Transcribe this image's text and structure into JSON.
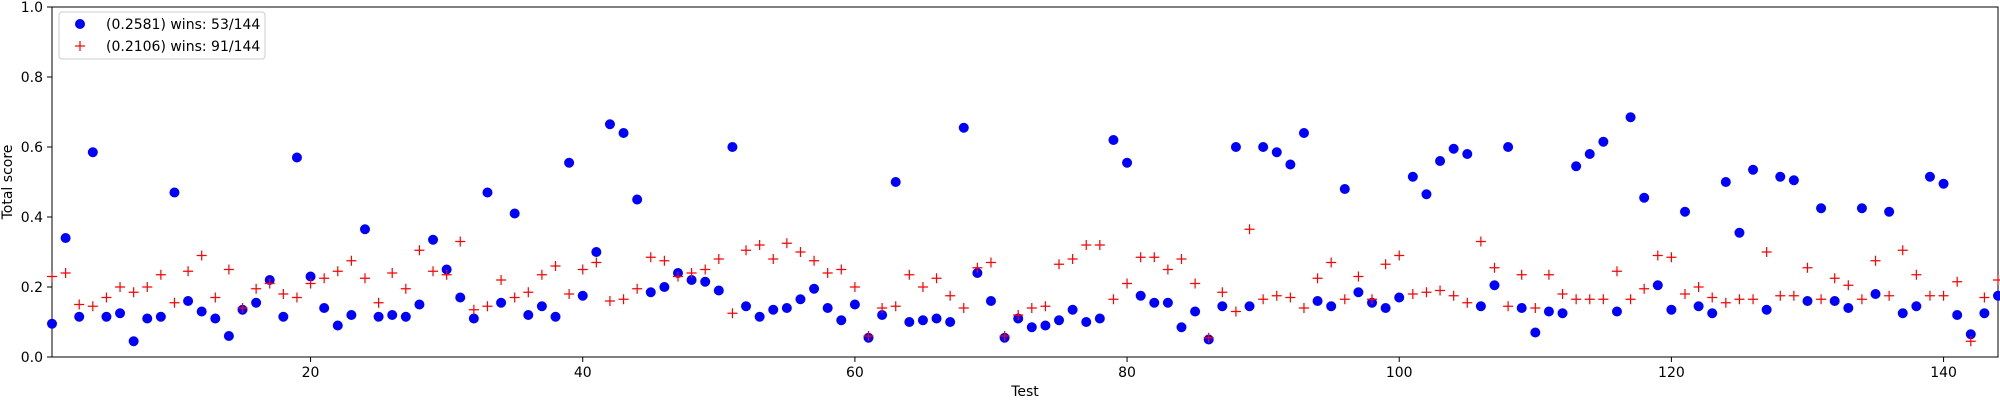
{
  "chart_data": {
    "type": "scatter",
    "title": "",
    "xlabel": "Test",
    "ylabel": "Total score",
    "xlim": [
      1,
      144
    ],
    "ylim": [
      0,
      1.0
    ],
    "x_ticks": [
      20,
      40,
      60,
      80,
      100,
      120,
      140
    ],
    "y_ticks": [
      0.0,
      0.2,
      0.4,
      0.6,
      0.8,
      1.0
    ],
    "x_tick_labels": [
      "20",
      "40",
      "60",
      "80",
      "100",
      "120",
      "140"
    ],
    "y_tick_labels": [
      "0.0",
      "0.2",
      "0.4",
      "0.6",
      "0.8",
      "1.0"
    ],
    "grid": false,
    "legend_position": "top-left",
    "x": [
      1,
      2,
      3,
      4,
      5,
      6,
      7,
      8,
      9,
      10,
      11,
      12,
      13,
      14,
      15,
      16,
      17,
      18,
      19,
      20,
      21,
      22,
      23,
      24,
      25,
      26,
      27,
      28,
      29,
      30,
      31,
      32,
      33,
      34,
      35,
      36,
      37,
      38,
      39,
      40,
      41,
      42,
      43,
      44,
      45,
      46,
      47,
      48,
      49,
      50,
      51,
      52,
      53,
      54,
      55,
      56,
      57,
      58,
      59,
      60,
      61,
      62,
      63,
      64,
      65,
      66,
      67,
      68,
      69,
      70,
      71,
      72,
      73,
      74,
      75,
      76,
      77,
      78,
      79,
      80,
      81,
      82,
      83,
      84,
      85,
      86,
      87,
      88,
      89,
      90,
      91,
      92,
      93,
      94,
      95,
      96,
      97,
      98,
      99,
      100,
      101,
      102,
      103,
      104,
      105,
      106,
      107,
      108,
      109,
      110,
      111,
      112,
      113,
      114,
      115,
      116,
      117,
      118,
      119,
      120,
      121,
      122,
      123,
      124,
      125,
      126,
      127,
      128,
      129,
      130,
      131,
      132,
      133,
      134,
      135,
      136,
      137,
      138,
      139,
      140,
      141,
      142,
      143,
      144
    ],
    "series": [
      {
        "name": "(0.2581) wins: 53/144",
        "marker": "circle",
        "color": "#0000ff",
        "values": [
          0.095,
          0.34,
          0.115,
          0.585,
          0.115,
          0.125,
          0.045,
          0.11,
          0.115,
          0.47,
          0.16,
          0.13,
          0.11,
          0.06,
          0.135,
          0.155,
          0.22,
          0.115,
          0.57,
          0.23,
          0.14,
          0.09,
          0.12,
          0.365,
          0.115,
          0.12,
          0.115,
          0.15,
          0.335,
          0.25,
          0.17,
          0.11,
          0.47,
          0.155,
          0.41,
          0.12,
          0.145,
          0.115,
          0.555,
          0.175,
          0.3,
          0.665,
          0.64,
          0.45,
          0.185,
          0.2,
          0.24,
          0.22,
          0.215,
          0.19,
          0.6,
          0.145,
          0.115,
          0.135,
          0.14,
          0.165,
          0.195,
          0.14,
          0.105,
          0.15,
          0.055,
          0.12,
          0.5,
          0.1,
          0.105,
          0.11,
          0.1,
          0.655,
          0.24,
          0.16,
          0.055,
          0.11,
          0.085,
          0.09,
          0.105,
          0.135,
          0.1,
          0.11,
          0.62,
          0.555,
          0.175,
          0.155,
          0.155,
          0.085,
          0.13,
          0.05,
          0.145,
          0.6,
          0.145,
          0.6,
          0.585,
          0.55,
          0.64,
          0.16,
          0.145,
          0.48,
          0.185,
          0.155,
          0.14,
          0.17,
          0.515,
          0.465,
          0.56,
          0.595,
          0.58,
          0.145,
          0.205,
          0.6,
          0.14,
          0.07,
          0.13,
          0.125,
          0.545,
          0.58,
          0.615,
          0.13,
          0.685,
          0.455,
          0.205,
          0.135,
          0.415,
          0.145,
          0.125,
          0.5,
          0.355,
          0.535,
          0.135,
          0.515,
          0.505,
          0.16,
          0.425,
          0.16,
          0.14,
          0.425,
          0.18,
          0.415,
          0.125,
          0.145,
          0.515,
          0.495,
          0.12,
          0.065,
          0.125,
          0.175
        ]
      },
      {
        "name": "(0.2106) wins: 91/144",
        "marker": "plus",
        "color": "#ff0000",
        "values": [
          0.23,
          0.24,
          0.15,
          0.145,
          0.17,
          0.2,
          0.185,
          0.2,
          0.235,
          0.155,
          0.245,
          0.29,
          0.17,
          0.25,
          0.14,
          0.195,
          0.21,
          0.18,
          0.17,
          0.21,
          0.225,
          0.245,
          0.275,
          0.225,
          0.155,
          0.24,
          0.195,
          0.305,
          0.245,
          0.235,
          0.33,
          0.135,
          0.145,
          0.22,
          0.17,
          0.185,
          0.235,
          0.26,
          0.18,
          0.25,
          0.27,
          0.16,
          0.165,
          0.195,
          0.285,
          0.275,
          0.23,
          0.24,
          0.25,
          0.28,
          0.125,
          0.305,
          0.32,
          0.28,
          0.325,
          0.3,
          0.275,
          0.24,
          0.25,
          0.2,
          0.06,
          0.14,
          0.145,
          0.235,
          0.2,
          0.225,
          0.175,
          0.14,
          0.255,
          0.27,
          0.06,
          0.12,
          0.14,
          0.145,
          0.265,
          0.28,
          0.32,
          0.32,
          0.165,
          0.21,
          0.285,
          0.285,
          0.25,
          0.28,
          0.21,
          0.055,
          0.185,
          0.13,
          0.365,
          0.165,
          0.175,
          0.17,
          0.14,
          0.225,
          0.27,
          0.165,
          0.23,
          0.165,
          0.265,
          0.29,
          0.18,
          0.185,
          0.19,
          0.175,
          0.155,
          0.33,
          0.255,
          0.145,
          0.235,
          0.14,
          0.235,
          0.18,
          0.165,
          0.165,
          0.165,
          0.245,
          0.165,
          0.195,
          0.29,
          0.285,
          0.18,
          0.2,
          0.17,
          0.155,
          0.165,
          0.165,
          0.3,
          0.175,
          0.175,
          0.255,
          0.165,
          0.225,
          0.205,
          0.165,
          0.275,
          0.175,
          0.305,
          0.235,
          0.175,
          0.175,
          0.215,
          0.045,
          0.17,
          0.22
        ]
      }
    ]
  },
  "legend": {
    "entries": [
      {
        "label": "(0.2581) wins: 53/144",
        "marker": "circle",
        "color": "#0000ff"
      },
      {
        "label": "(0.2106) wins: 91/144",
        "marker": "plus",
        "color": "#ff0000"
      }
    ]
  }
}
